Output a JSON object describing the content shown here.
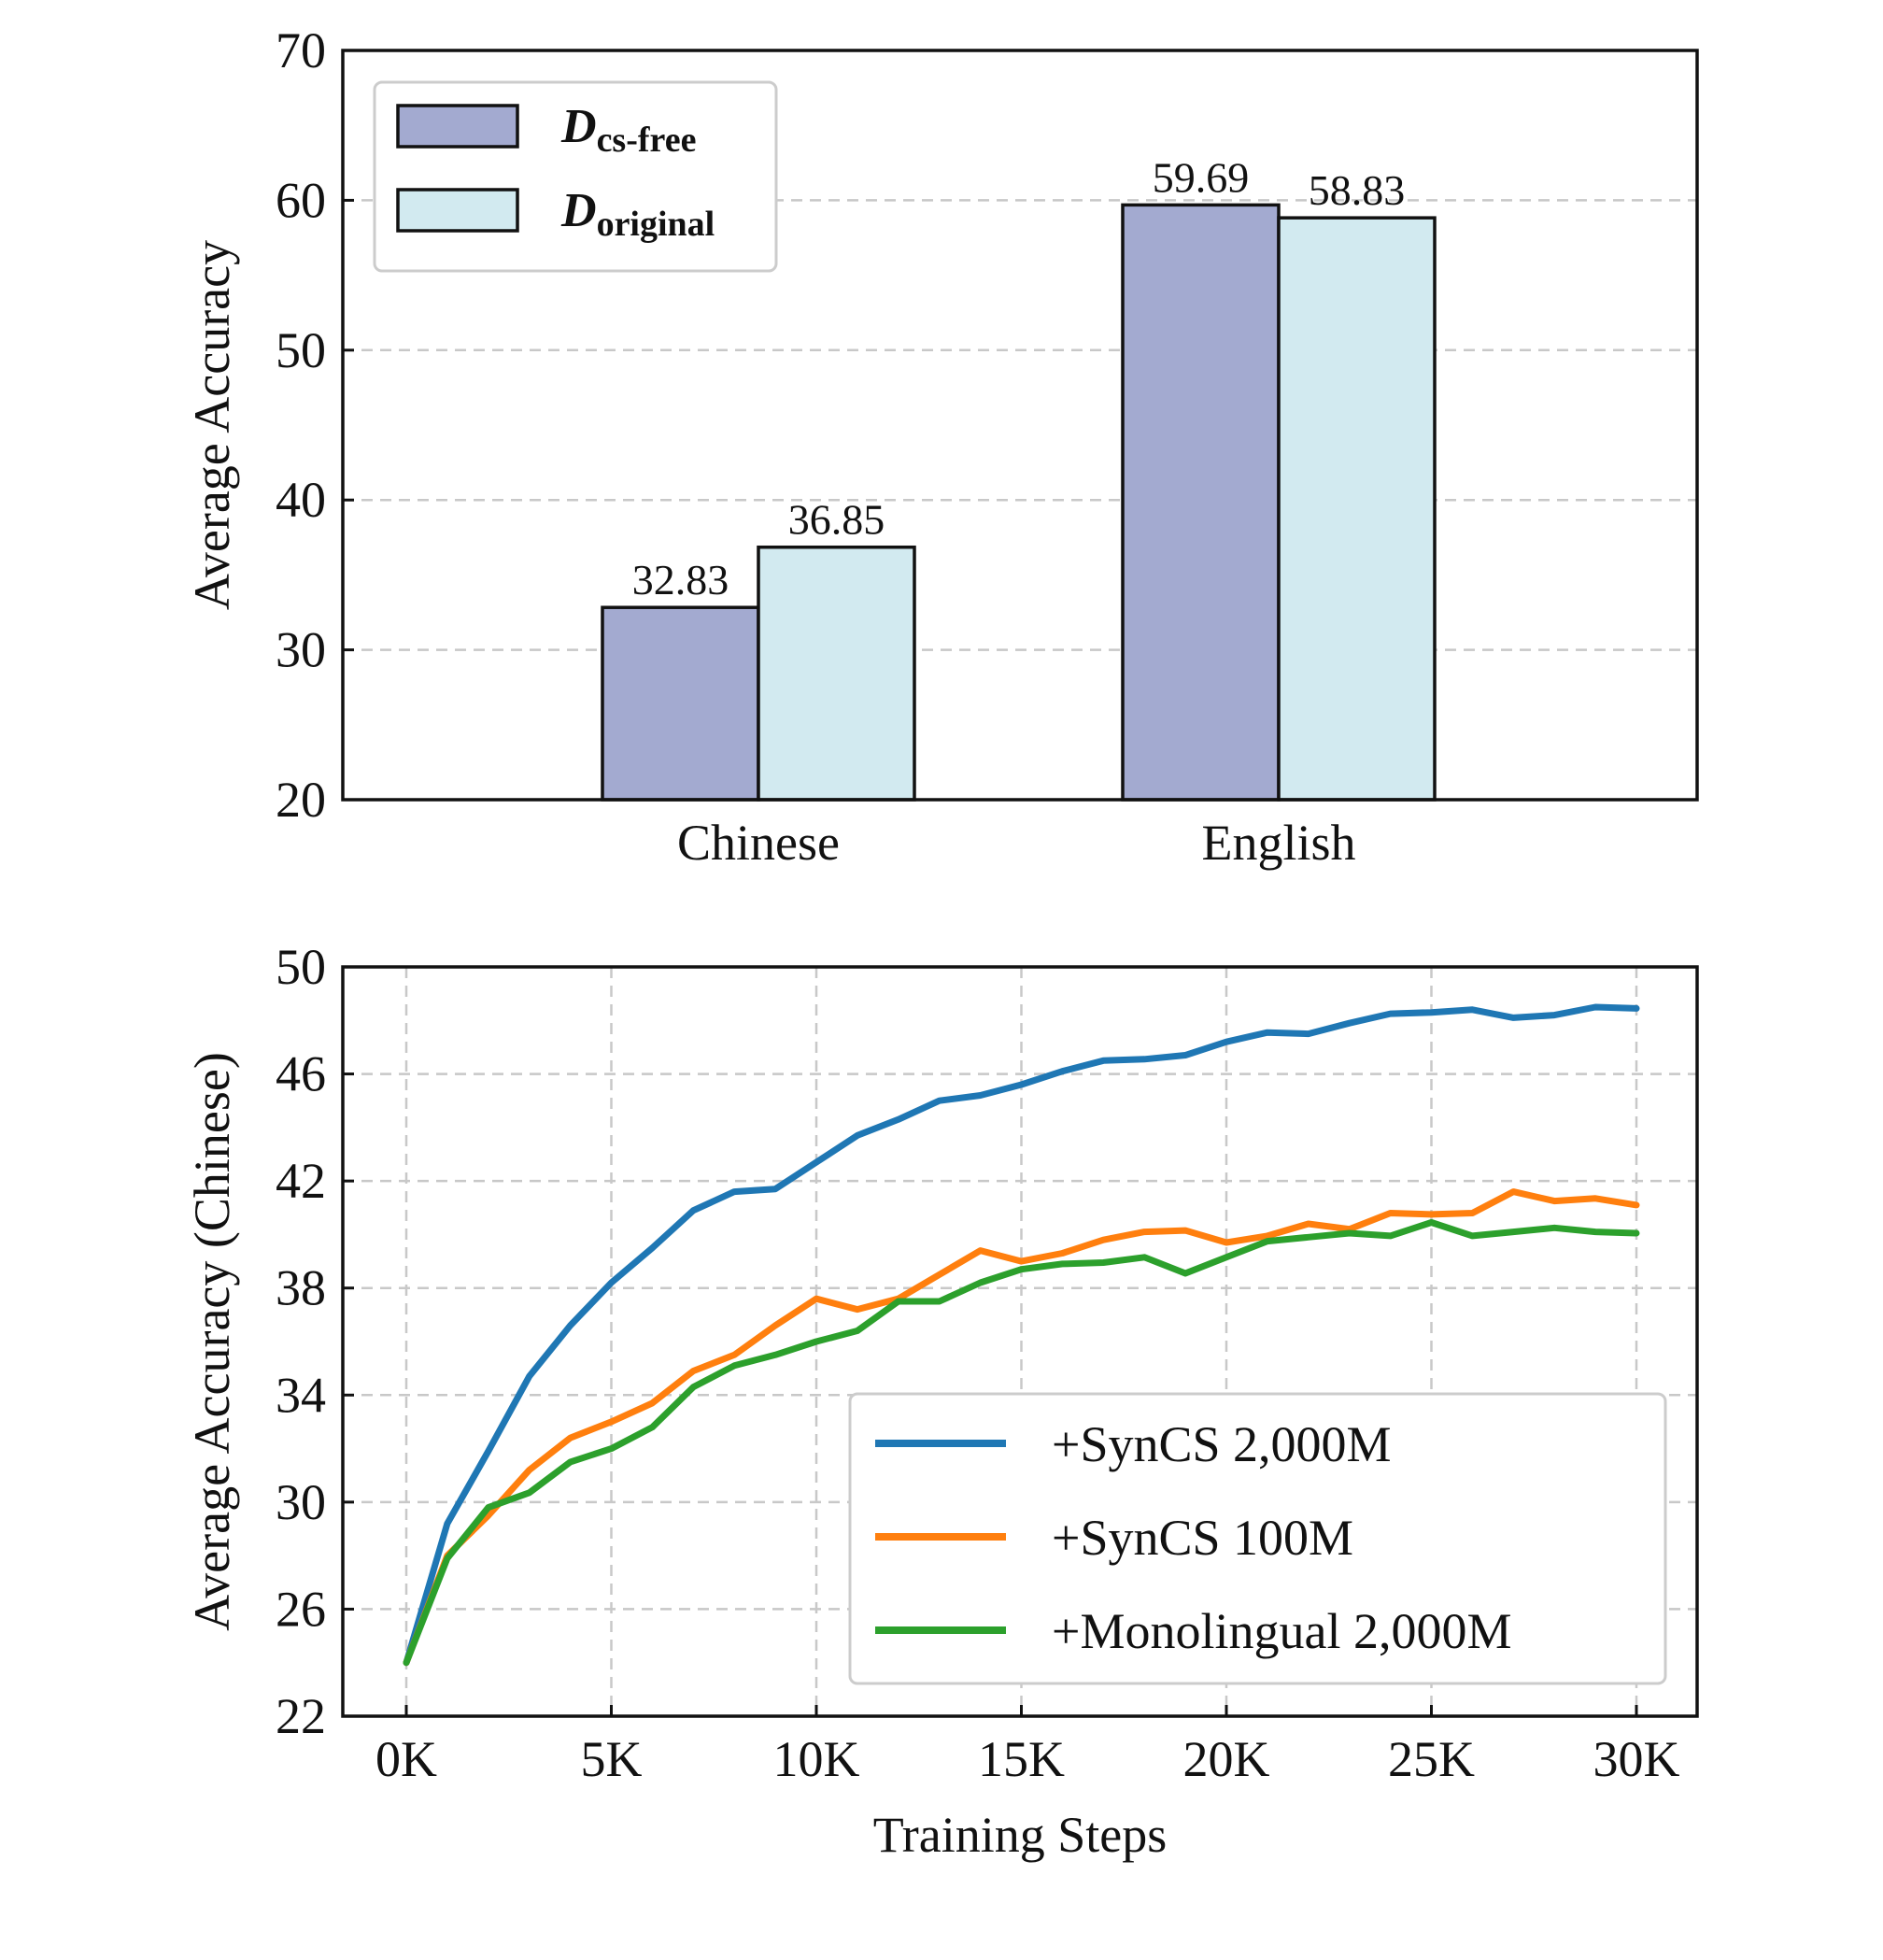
{
  "chart_data": [
    {
      "type": "bar",
      "ylabel": "Average Accuracy",
      "xlabel": "",
      "ylim": [
        20,
        70
      ],
      "yticks": [
        20,
        30,
        40,
        50,
        60,
        70
      ],
      "categories": [
        "Chinese",
        "English"
      ],
      "grid": "y-dashed",
      "legend_position": "top-left",
      "series": [
        {
          "name": "D",
          "subscript": "cs-free",
          "color": "#a3aad0",
          "values": [
            32.83,
            59.69
          ],
          "labels": [
            "32.83",
            "59.69"
          ]
        },
        {
          "name": "D",
          "subscript": "original",
          "color": "#d2eaf0",
          "values": [
            36.85,
            58.83
          ],
          "labels": [
            "36.85",
            "58.83"
          ]
        }
      ]
    },
    {
      "type": "line",
      "xlabel": "Training Steps",
      "ylabel": "Average Accuracy (Chinese)",
      "xlim": [
        0,
        30
      ],
      "ylim": [
        22,
        50
      ],
      "xticks": [
        0,
        5,
        10,
        15,
        20,
        25,
        30
      ],
      "xtick_labels": [
        "0K",
        "5K",
        "10K",
        "15K",
        "20K",
        "25K",
        "30K"
      ],
      "yticks": [
        22,
        26,
        30,
        34,
        38,
        42,
        46,
        50
      ],
      "grid": "xy-dashed",
      "legend_position": "bottom-right",
      "x": [
        0,
        1,
        2,
        3,
        4,
        5,
        6,
        7,
        8,
        9,
        10,
        11,
        12,
        13,
        14,
        15,
        16,
        17,
        18,
        19,
        20,
        21,
        22,
        23,
        24,
        25,
        26,
        27,
        28,
        29,
        30
      ],
      "series": [
        {
          "name": "+SynCS 2,000M",
          "color": "#1f77b4",
          "values": [
            24.0,
            29.2,
            31.9,
            34.7,
            36.6,
            38.2,
            39.5,
            40.9,
            41.6,
            41.7,
            42.7,
            43.7,
            44.3,
            45.0,
            45.2,
            45.6,
            46.1,
            46.5,
            46.55,
            46.7,
            47.2,
            47.55,
            47.5,
            47.9,
            48.25,
            48.3,
            48.4,
            48.1,
            48.2,
            48.5,
            48.45
          ]
        },
        {
          "name": "+SynCS 100M",
          "color": "#ff7f0e",
          "values": [
            24.0,
            28.0,
            29.5,
            31.2,
            32.4,
            33.0,
            33.7,
            34.9,
            35.5,
            36.6,
            37.6,
            37.2,
            37.6,
            38.5,
            39.4,
            39.0,
            39.3,
            39.8,
            40.1,
            40.15,
            39.7,
            39.95,
            40.4,
            40.2,
            40.8,
            40.75,
            40.8,
            41.6,
            41.25,
            41.35,
            41.1
          ]
        },
        {
          "name": "+Monolingual 2,000M",
          "color": "#2ca02c",
          "values": [
            24.0,
            27.9,
            29.8,
            30.35,
            31.5,
            32.0,
            32.8,
            34.3,
            35.1,
            35.5,
            36.0,
            36.4,
            37.5,
            37.5,
            38.2,
            38.7,
            38.9,
            38.95,
            39.15,
            38.55,
            39.15,
            39.75,
            39.9,
            40.05,
            39.95,
            40.45,
            39.95,
            40.1,
            40.25,
            40.1,
            40.05
          ]
        }
      ]
    }
  ]
}
